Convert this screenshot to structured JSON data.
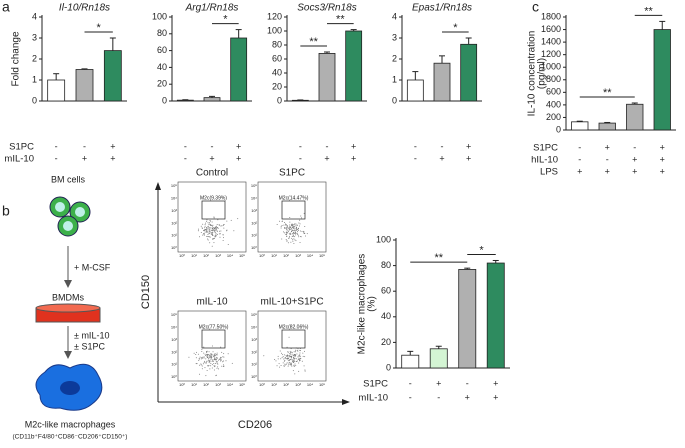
{
  "panel_labels": [
    "a",
    "b",
    "c"
  ],
  "chart_data": [
    {
      "type": "bar",
      "title": "Il-10/Rn18s",
      "ylabel": [
        "Fold change"
      ],
      "categories": [
        null,
        null,
        null
      ],
      "values": [
        1.0,
        1.5,
        2.4
      ],
      "errors": [
        0.3,
        0.03,
        0.6
      ],
      "colors": [
        "#ffffff",
        "#b0b0b0",
        "#2e8b5f"
      ],
      "ylim": [
        0,
        4
      ],
      "yticks": [
        0,
        1,
        2,
        3,
        4
      ],
      "significance": [
        {
          "from": 1,
          "to": 2,
          "label": "*"
        }
      ],
      "conditions": [
        {
          "name": "S1PC",
          "signs": [
            "-",
            "-",
            "+"
          ]
        },
        {
          "name": "mIL-10",
          "signs": [
            "-",
            "+",
            "+"
          ]
        }
      ]
    },
    {
      "type": "bar",
      "title": "Arg1/Rn18s",
      "categories": [
        null,
        null,
        null
      ],
      "values": [
        1,
        4,
        75
      ],
      "errors": [
        0.5,
        1.5,
        10
      ],
      "colors": [
        "#ffffff",
        "#b0b0b0",
        "#2e8b5f"
      ],
      "ylim": [
        0,
        100
      ],
      "yticks": [
        0,
        20,
        40,
        60,
        80,
        100
      ],
      "significance": [
        {
          "from": 1,
          "to": 2,
          "label": "*"
        }
      ],
      "conditions": [
        {
          "signs": [
            "-",
            "-",
            "+"
          ]
        },
        {
          "signs": [
            "-",
            "+",
            "+"
          ]
        }
      ]
    },
    {
      "type": "bar",
      "title": "Socs3/Rn18s",
      "categories": [
        null,
        null,
        null
      ],
      "values": [
        1,
        68,
        100
      ],
      "errors": [
        0.5,
        2,
        2
      ],
      "colors": [
        "#ffffff",
        "#b0b0b0",
        "#2e8b5f"
      ],
      "ylim": [
        0,
        120
      ],
      "yticks": [
        0,
        20,
        40,
        60,
        80,
        100,
        120
      ],
      "significance": [
        {
          "from": 0,
          "to": 1,
          "label": "**"
        },
        {
          "from": 1,
          "to": 2,
          "label": "**"
        }
      ],
      "conditions": [
        {
          "signs": [
            "-",
            "-",
            "+"
          ]
        },
        {
          "signs": [
            "-",
            "+",
            "+"
          ]
        }
      ]
    },
    {
      "type": "bar",
      "title": "Epas1/Rn18s",
      "categories": [
        null,
        null,
        null
      ],
      "values": [
        1.0,
        1.8,
        2.7
      ],
      "errors": [
        0.4,
        0.35,
        0.3
      ],
      "colors": [
        "#ffffff",
        "#b0b0b0",
        "#2e8b5f"
      ],
      "ylim": [
        0,
        4
      ],
      "yticks": [
        0,
        1,
        2,
        3,
        4
      ],
      "significance": [
        {
          "from": 1,
          "to": 2,
          "label": "*"
        }
      ],
      "conditions": [
        {
          "signs": [
            "-",
            "-",
            "+"
          ]
        },
        {
          "signs": [
            "-",
            "+",
            "+"
          ]
        }
      ]
    },
    {
      "type": "bar",
      "ylabel": [
        "IL-10 concentration",
        "(pg/ml)"
      ],
      "categories": [
        null,
        null,
        null,
        null
      ],
      "values": [
        130,
        110,
        410,
        1600
      ],
      "errors": [
        10,
        10,
        20,
        130
      ],
      "colors": [
        "#ffffff",
        "#b0b0b0",
        "#b0b0b0",
        "#2e8b5f"
      ],
      "ylim": [
        0,
        1800
      ],
      "yticks": [
        0,
        200,
        400,
        600,
        800,
        1000,
        1200,
        1400,
        1600,
        1800
      ],
      "significance": [
        {
          "from": 0,
          "to": 2,
          "label": "**"
        },
        {
          "from": 2,
          "to": 3,
          "label": "**"
        }
      ],
      "conditions": [
        {
          "name": "S1PC",
          "signs": [
            "-",
            "+",
            "-",
            "+"
          ]
        },
        {
          "name": "hIL-10",
          "signs": [
            "-",
            "-",
            "+",
            "+"
          ]
        },
        {
          "name": "LPS",
          "signs": [
            "+",
            "+",
            "+",
            "+"
          ]
        }
      ]
    },
    {
      "type": "bar",
      "ylabel": [
        "M2c-like macrophages",
        "(%)"
      ],
      "categories": [
        null,
        null,
        null,
        null
      ],
      "values": [
        10,
        15,
        77,
        82
      ],
      "errors": [
        3,
        2,
        1,
        2
      ],
      "colors": [
        "#ffffff",
        "#d4f5d4",
        "#b0b0b0",
        "#2e8b5f"
      ],
      "ylim": [
        0,
        100
      ],
      "yticks": [
        0,
        20,
        40,
        60,
        80,
        100
      ],
      "significance": [
        {
          "from": 0,
          "to": 2,
          "label": "**"
        },
        {
          "from": 2,
          "to": 3,
          "label": "*"
        }
      ],
      "conditions": [
        {
          "name": "S1PC",
          "signs": [
            "-",
            "+",
            "-",
            "+"
          ]
        },
        {
          "name": "mIL-10",
          "signs": [
            "-",
            "-",
            "+",
            "+"
          ]
        }
      ]
    }
  ],
  "diagram": {
    "start": "BM cells",
    "step1": "+ M-CSF",
    "middle": "BMDMs",
    "step2": [
      "± mIL-10",
      "± S1PC"
    ],
    "end": "M2c-like macrophages",
    "end_markers": "(CD11b⁺F4/80⁺CD86⁻CD206⁺CD150⁺)"
  },
  "flow": {
    "y_axis": "CD150",
    "x_axis": "CD206",
    "tick_labels": [
      "10⁰",
      "10¹",
      "10²",
      "10³",
      "10⁴",
      "10⁵"
    ],
    "plots": [
      {
        "title": "Control",
        "gate_label": "M2c(9.39%)"
      },
      {
        "title": "S1PC",
        "gate_label": "M2c(14.47%)"
      },
      {
        "title": "mIL-10",
        "gate_label": "M2c(77.50%)"
      },
      {
        "title": "mIL-10+S1PC",
        "gate_label": "M2c(82.06%)"
      }
    ]
  }
}
